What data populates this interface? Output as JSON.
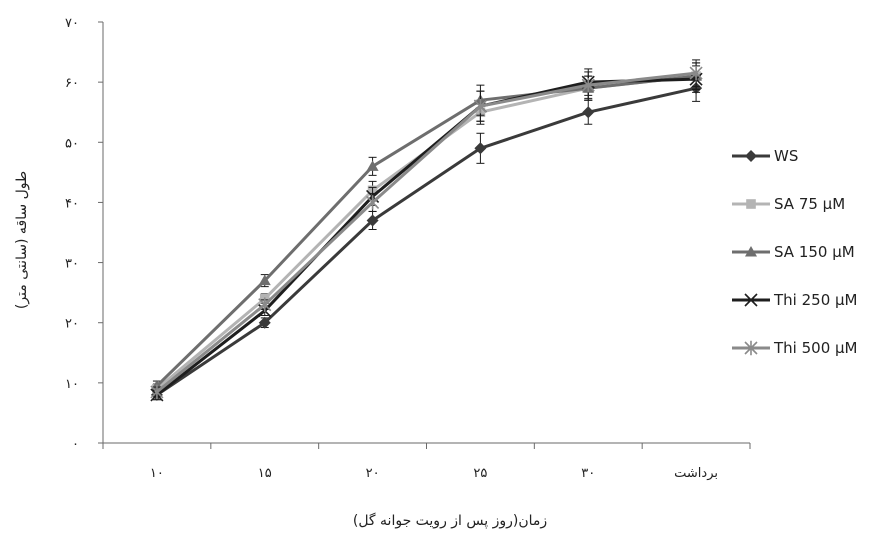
{
  "chart_data": {
    "type": "line",
    "categories": [
      "۱۰",
      "۱۵",
      "۲۰",
      "۲۵",
      "۳۰",
      "برداشت"
    ],
    "xlabel": "زمان(روز پس از رویت جوانه گل)",
    "ylabel": "طول ساقه (سانتی متر)",
    "ylim": [
      0,
      70
    ],
    "yticks": [
      0,
      10,
      20,
      30,
      40,
      50,
      60,
      70
    ],
    "ytick_labels": [
      "۰",
      "۱۰",
      "۲۰",
      "۳۰",
      "۴۰",
      "۵۰",
      "۶۰",
      "۷۰"
    ],
    "grid": false,
    "legend_position": "right",
    "error_bars": true,
    "series": [
      {
        "name": "WS",
        "values": [
          8,
          20,
          37,
          49,
          55,
          59
        ],
        "errors": [
          0.8,
          0.8,
          1.5,
          2.5,
          2.0,
          2.2
        ],
        "color": "#3a3a3a",
        "marker": "diamond"
      },
      {
        "name": "SA 75 µM",
        "values": [
          9,
          24,
          42,
          55,
          59,
          61
        ],
        "errors": [
          0.8,
          0.8,
          1.5,
          2.0,
          2.0,
          2.2
        ],
        "color": "#b4b4b4",
        "marker": "square"
      },
      {
        "name": "SA 150 µM",
        "values": [
          9.5,
          27,
          46,
          57,
          59,
          61
        ],
        "errors": [
          0.8,
          1.0,
          1.5,
          2.5,
          2.0,
          2.2
        ],
        "color": "#6e6e6e",
        "marker": "triangle"
      },
      {
        "name": "Thi 250 µM",
        "values": [
          8,
          22,
          41,
          56,
          60,
          60.5
        ],
        "errors": [
          0.8,
          0.8,
          1.5,
          2.5,
          2.2,
          2.2
        ],
        "color": "#1e1e1e",
        "marker": "x"
      },
      {
        "name": "Thi 500 µM",
        "values": [
          8.5,
          23,
          40,
          56,
          59.5,
          61.5
        ],
        "errors": [
          0.8,
          0.8,
          1.5,
          2.5,
          2.2,
          2.2
        ],
        "color": "#8a8a8a",
        "marker": "asterisk"
      }
    ]
  }
}
